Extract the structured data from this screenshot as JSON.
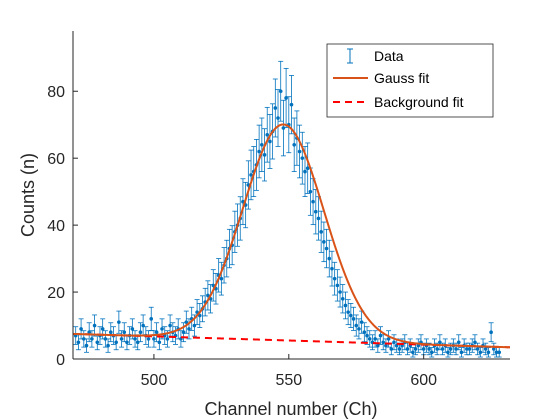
{
  "chart_data": {
    "type": "scatter",
    "title": "",
    "xlabel": "Channel number (Ch)",
    "ylabel": "Counts (n)",
    "xlim": [
      470,
      632
    ],
    "ylim": [
      0,
      98
    ],
    "xticks": [
      500,
      550,
      600
    ],
    "yticks": [
      0,
      20,
      40,
      60,
      80
    ],
    "grid": false,
    "legend_position": "top-right",
    "legend": [
      "Data",
      "Gauss fit",
      "Background fit"
    ],
    "colors": {
      "data": "#0072BD",
      "gauss": "#D95319",
      "background": "#FF0000",
      "axis": "#262626"
    },
    "series": [
      {
        "name": "Data",
        "kind": "errorbar",
        "x": [
          471,
          472,
          473,
          474,
          475,
          476,
          477,
          478,
          479,
          480,
          481,
          482,
          483,
          484,
          485,
          486,
          487,
          488,
          489,
          490,
          491,
          492,
          493,
          494,
          495,
          496,
          497,
          498,
          499,
          500,
          501,
          502,
          503,
          504,
          505,
          506,
          507,
          508,
          509,
          510,
          511,
          512,
          513,
          514,
          515,
          516,
          517,
          518,
          519,
          520,
          521,
          522,
          523,
          524,
          525,
          526,
          527,
          528,
          529,
          530,
          531,
          532,
          533,
          534,
          535,
          536,
          537,
          538,
          539,
          540,
          541,
          542,
          543,
          544,
          545,
          546,
          547,
          548,
          549,
          550,
          551,
          552,
          553,
          554,
          555,
          556,
          557,
          558,
          559,
          560,
          561,
          562,
          563,
          564,
          565,
          566,
          567,
          568,
          569,
          570,
          571,
          572,
          573,
          574,
          575,
          576,
          577,
          578,
          579,
          580,
          581,
          582,
          583,
          584,
          585,
          586,
          587,
          588,
          589,
          590,
          591,
          592,
          593,
          594,
          595,
          596,
          597,
          598,
          599,
          600,
          601,
          602,
          603,
          604,
          605,
          606,
          607,
          608,
          609,
          610,
          611,
          612,
          613,
          614,
          615,
          616,
          617,
          618,
          619,
          620,
          621,
          622,
          623,
          624,
          625,
          626,
          627,
          628
        ],
        "y": [
          7,
          5,
          9,
          6,
          4,
          8,
          6,
          10,
          5,
          7,
          9,
          6,
          4,
          8,
          7,
          5,
          11,
          6,
          8,
          5,
          7,
          9,
          6,
          5,
          8,
          10,
          7,
          6,
          12,
          6,
          8,
          5,
          9,
          7,
          6,
          10,
          8,
          7,
          9,
          6,
          8,
          11,
          9,
          12,
          10,
          14,
          13,
          15,
          17,
          19,
          18,
          22,
          21,
          25,
          24,
          28,
          30,
          33,
          34,
          38,
          40,
          42,
          47,
          46,
          52,
          55,
          56,
          58,
          62,
          64,
          61,
          67,
          65,
          68,
          75,
          72,
          80,
          69,
          78,
          70,
          76,
          64,
          66,
          62,
          60,
          56,
          57,
          50,
          47,
          44,
          42,
          38,
          35,
          33,
          30,
          27,
          24,
          22,
          20,
          18,
          16,
          14,
          13,
          12,
          10,
          9,
          11,
          8,
          7,
          6,
          5,
          6,
          4,
          7,
          5,
          4,
          6,
          3,
          5,
          4,
          3,
          4,
          5,
          3,
          4,
          2,
          3,
          4,
          5,
          3,
          4,
          3,
          2,
          4,
          3,
          5,
          3,
          4,
          2,
          3,
          4,
          3,
          5,
          2,
          4,
          3,
          3,
          4,
          5,
          3,
          2,
          4,
          3,
          2,
          8,
          3,
          2,
          2
        ]
      },
      {
        "name": "Gauss fit",
        "kind": "line",
        "model": {
          "amplitude": 64.5,
          "mean": 548,
          "sigma": 15,
          "bg_start": 7.5,
          "bg_end": 3.5
        }
      },
      {
        "name": "Background fit",
        "kind": "dashed-line",
        "model": {
          "bg_start": 7.5,
          "bg_end": 3.5
        }
      }
    ]
  }
}
